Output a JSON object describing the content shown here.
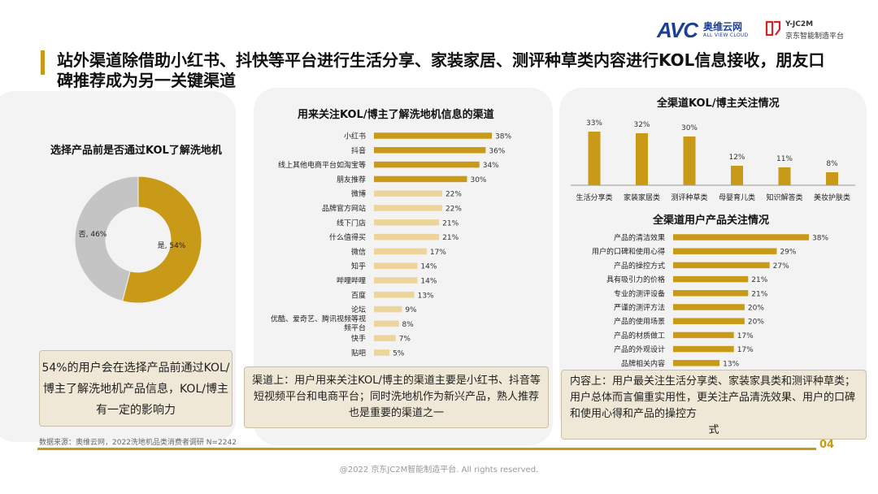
{
  "logos": {
    "avc_mark": "AVC",
    "avc_cn": "奥维云网",
    "avc_en": "ALL VIEW CLOUD",
    "jd_code": "Y-JC2M",
    "jd_name": "京东智能制造平台"
  },
  "header": {
    "title": "站外渠道除借助小红书、抖快等平台进行生活分享、家装家居、测评种草类内容进行KOL信息接收，朋友口碑推荐成为另一关键渠道"
  },
  "notes": {
    "left": "54%的用户会在选择产品前通过KOL/博主了解洗地机产品信息，KOL/博主有一定的影响力",
    "middle": "渠道上：用户用来关注KOL/博主的渠道主要是小红书、抖音等短视频平台和电商平台；同时洗地机作为新兴产品，熟人推荐也是重要的渠道之一",
    "right_main": "内容上：用户最关注生活分享类、家装家具类和测评种草类；用户总体而言偏重实用性，更关注产品清洗效果、用户的口碑和使用心得和产品的操控方",
    "right_tail": "式"
  },
  "footer": {
    "source": "数据来源：奥维云网，2022洗地机品类消费者调研 N=2242",
    "copyright": "@2022 京东JC2M智能制造平台. All rights reserved.",
    "page": "04"
  },
  "colors": {
    "gold": "#c89a18",
    "light_gold": "#ecd49a",
    "grey": "#c4c4c4"
  },
  "chart_data": [
    {
      "type": "pie",
      "title": "选择产品前是否通过KOL了解洗地机",
      "categories": [
        "是",
        "否"
      ],
      "values": [
        54,
        46
      ],
      "labels": [
        "是, 54%",
        "否, 46%"
      ]
    },
    {
      "type": "bar",
      "orientation": "horizontal",
      "title": "用来关注KOL/博主了解洗地机信息的渠道",
      "categories": [
        "小红书",
        "抖音",
        "线上其他电商平台如淘宝等",
        "朋友推荐",
        "微博",
        "品牌官方网站",
        "线下门店",
        "什么值得买",
        "微信",
        "知乎",
        "哔哩哔哩",
        "百度",
        "论坛",
        "优酷、爱奇艺、腾讯视频等视频平台",
        "快手",
        "贴吧"
      ],
      "values": [
        38,
        36,
        34,
        30,
        22,
        22,
        21,
        21,
        17,
        14,
        14,
        13,
        9,
        8,
        7,
        5
      ],
      "value_labels": [
        "38%",
        "36%",
        "34%",
        "30%",
        "22%",
        "22%",
        "21%",
        "21%",
        "17%",
        "14%",
        "14%",
        "13%",
        "9%",
        "8%",
        "7%",
        "5%"
      ],
      "highlight_top": 4,
      "unit": "%"
    },
    {
      "type": "bar",
      "orientation": "vertical",
      "title": "全渠道KOL/博主关注情况",
      "categories": [
        "生活分享类",
        "家装家居类",
        "测评种草类",
        "母婴育儿类",
        "知识解答类",
        "美妆护肤类"
      ],
      "values": [
        33,
        32,
        30,
        12,
        11,
        8
      ],
      "value_labels": [
        "33%",
        "32%",
        "30%",
        "12%",
        "11%",
        "8%"
      ],
      "unit": "%"
    },
    {
      "type": "bar",
      "orientation": "horizontal",
      "title": "全渠道用户产品关注情况",
      "categories": [
        "产品的清洁效果",
        "用户的口碑和使用心得",
        "产品的操控方式",
        "具有吸引力的价格",
        "专业的测评设备",
        "严谨的测评方法",
        "产品的使用场景",
        "产品的材质做工",
        "产品的外观设计",
        "品牌相关内容"
      ],
      "values": [
        38,
        29,
        27,
        21,
        21,
        20,
        20,
        17,
        17,
        13
      ],
      "value_labels": [
        "38%",
        "29%",
        "27%",
        "21%",
        "21%",
        "20%",
        "20%",
        "17%",
        "17%",
        "13%"
      ],
      "unit": "%"
    }
  ]
}
